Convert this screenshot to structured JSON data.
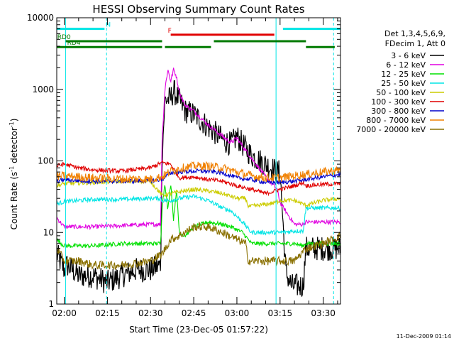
{
  "chart_data": {
    "type": "line",
    "title": "HESSI Observing Summary Count Rates",
    "xlabel": "Start Time (23-Dec-05 01:57:22)",
    "ylabel_main": "Count Rate (s",
    "ylabel_sup1": "-1",
    "ylabel_mid": " detector",
    "ylabel_sup2": "-1",
    "ylabel_end": ")",
    "yscale": "log",
    "ylim": [
      1,
      10000
    ],
    "xlim_minutes": [
      117.4,
      216.0
    ],
    "y_ticks": [
      {
        "value": 1,
        "label": "1"
      },
      {
        "value": 10,
        "label": "10"
      },
      {
        "value": 100,
        "label": "100"
      },
      {
        "value": 1000,
        "label": "1000"
      },
      {
        "value": 10000,
        "label": "10000"
      }
    ],
    "x_ticks": [
      {
        "value": 120,
        "label": "02:00"
      },
      {
        "value": 135,
        "label": "02:15"
      },
      {
        "value": 150,
        "label": "02:30"
      },
      {
        "value": 165,
        "label": "02:45"
      },
      {
        "value": 180,
        "label": "03:00"
      },
      {
        "value": 195,
        "label": "03:15"
      },
      {
        "value": 210,
        "label": "03:30"
      }
    ],
    "legend_header": [
      "Det 1,3,4,5,6,9,",
      "FDecim 1, Att 0"
    ],
    "legend_placement": "right",
    "footer": "11-Dec-2009 01:14",
    "flags": [
      {
        "label": "N",
        "color": "#00e5e5",
        "label_at": 134.5,
        "segments": [
          [
            117.5,
            134.0
          ],
          [
            196.0,
            216.0
          ]
        ],
        "level": 7000
      },
      {
        "label": "F",
        "color": "#e00000",
        "label_at": 156.0,
        "segments": [
          [
            157.0,
            193.0
          ]
        ],
        "level": 5800
      },
      {
        "label": "RD0",
        "color": "#007a00",
        "label_at": 117.6,
        "segments": [
          [
            120.5,
            154.0
          ],
          [
            172.0,
            204.0
          ]
        ],
        "level": 4700
      },
      {
        "label": "RD4",
        "color": "#007a00",
        "label_at": 121.0,
        "segments": [
          [
            117.5,
            154.0
          ],
          [
            155.0,
            171.0
          ],
          [
            204.0,
            214.0
          ]
        ],
        "level": 3900
      }
    ],
    "vlines": [
      {
        "x": 120.5,
        "color": "#00e5e5",
        "dash": false
      },
      {
        "x": 134.7,
        "color": "#00e5e5",
        "dash": true
      },
      {
        "x": 193.6,
        "color": "#00e5e5",
        "dash": false
      },
      {
        "x": 213.6,
        "color": "#00e5e5",
        "dash": true
      }
    ],
    "series": [
      {
        "name": "3 - 6 keV",
        "color": "#000000",
        "x": [
          117.4,
          120,
          121,
          125,
          130,
          135,
          140,
          145,
          150,
          153.5,
          154,
          155,
          157,
          158,
          160,
          162,
          165,
          170,
          175,
          178,
          180,
          182,
          185,
          190,
          194,
          195,
          197,
          199,
          203,
          204,
          205,
          210,
          216
        ],
        "y": [
          5,
          3,
          3.5,
          2.5,
          2.5,
          2,
          2.5,
          3,
          3,
          3.5,
          120,
          700,
          750,
          950,
          700,
          500,
          450,
          300,
          200,
          170,
          220,
          170,
          120,
          90,
          70,
          70,
          2.8,
          1.8,
          1.8,
          6,
          6,
          6,
          6
        ]
      },
      {
        "name": "6 - 12 keV",
        "color": "#e000e0",
        "x": [
          117.4,
          120,
          130,
          140,
          150,
          153.5,
          154,
          155,
          156,
          157,
          158,
          159,
          160,
          162,
          165,
          170,
          175,
          178,
          180,
          182,
          185,
          190,
          194,
          195,
          200,
          203,
          204,
          210,
          216
        ],
        "y": [
          16,
          12,
          12,
          12.5,
          13,
          13,
          200,
          1000,
          1900,
          1300,
          1900,
          1500,
          900,
          600,
          500,
          320,
          220,
          180,
          210,
          160,
          110,
          60,
          40,
          26,
          13,
          13,
          14,
          14,
          14
        ]
      },
      {
        "name": "12 - 25 keV",
        "color": "#00e000",
        "x": [
          117.4,
          120,
          130,
          140,
          150,
          153.5,
          154,
          155,
          156,
          157,
          158,
          159,
          160,
          162,
          165,
          170,
          175,
          178,
          182,
          185,
          190,
          195,
          200,
          203,
          204,
          210,
          216
        ],
        "y": [
          8,
          6.5,
          6.5,
          7,
          7,
          7,
          22,
          50,
          20,
          50,
          15,
          40,
          10,
          9,
          12,
          14,
          13,
          12,
          10,
          7,
          7,
          7,
          7,
          6.5,
          7,
          7,
          7
        ]
      },
      {
        "name": "25 - 50 keV",
        "color": "#00e5e5",
        "x": [
          117.4,
          120,
          130,
          140,
          150,
          153.5,
          154,
          157,
          160,
          165,
          170,
          175,
          178,
          182,
          185,
          190,
          195,
          200,
          203,
          204,
          210,
          216
        ],
        "y": [
          25,
          27,
          29,
          29,
          30,
          30,
          28,
          28,
          30,
          32,
          28,
          22,
          20,
          14,
          10,
          10,
          10,
          10.5,
          10.5,
          22,
          22,
          22
        ]
      },
      {
        "name": "50 - 100 keV",
        "color": "#cccc00",
        "x": [
          117.4,
          120,
          130,
          140,
          150,
          154,
          157,
          160,
          165,
          170,
          175,
          180,
          183,
          184,
          188,
          193,
          195,
          200,
          204,
          210,
          216
        ],
        "y": [
          45,
          48,
          50,
          52,
          52,
          33,
          35,
          37,
          40,
          38,
          35,
          30,
          30,
          23,
          24,
          26,
          28,
          28,
          24,
          28,
          30
        ]
      },
      {
        "name": "100 - 300 keV",
        "color": "#e00000",
        "x": [
          117.4,
          120,
          125,
          130,
          140,
          150,
          154,
          157,
          160,
          165,
          170,
          175,
          180,
          185,
          190,
          195,
          200,
          203,
          204,
          210,
          216
        ],
        "y": [
          85,
          90,
          80,
          75,
          72,
          80,
          95,
          90,
          58,
          60,
          55,
          52,
          45,
          40,
          35,
          40,
          45,
          50,
          45,
          47,
          48
        ]
      },
      {
        "name": "300 - 800 keV",
        "color": "#0000cc",
        "x": [
          117.4,
          120,
          125,
          130,
          140,
          150,
          154,
          157,
          160,
          165,
          170,
          175,
          180,
          185,
          190,
          195,
          200,
          204,
          210,
          216
        ],
        "y": [
          52,
          55,
          53,
          52,
          52,
          53,
          55,
          68,
          70,
          72,
          72,
          68,
          58,
          55,
          50,
          50,
          52,
          55,
          60,
          65
        ]
      },
      {
        "name": "800 - 7000 keV",
        "color": "#f08000",
        "x": [
          117.4,
          120,
          125,
          130,
          140,
          150,
          154,
          157,
          160,
          165,
          170,
          175,
          180,
          185,
          190,
          195,
          200,
          204,
          210,
          216
        ],
        "y": [
          60,
          62,
          60,
          58,
          56,
          56,
          60,
          72,
          78,
          85,
          85,
          80,
          70,
          62,
          58,
          58,
          62,
          65,
          70,
          75
        ]
      },
      {
        "name": "7000 - 20000 keV",
        "color": "#8a7000",
        "x": [
          117.4,
          120,
          125,
          130,
          140,
          150,
          154,
          157,
          160,
          165,
          170,
          175,
          180,
          183,
          184,
          190,
          195,
          200,
          204,
          210,
          216
        ],
        "y": [
          6,
          4,
          4,
          3.5,
          3.5,
          4,
          5,
          8,
          9,
          12,
          12,
          10,
          8,
          7,
          4,
          4,
          4,
          4,
          6,
          7,
          9
        ]
      }
    ]
  }
}
